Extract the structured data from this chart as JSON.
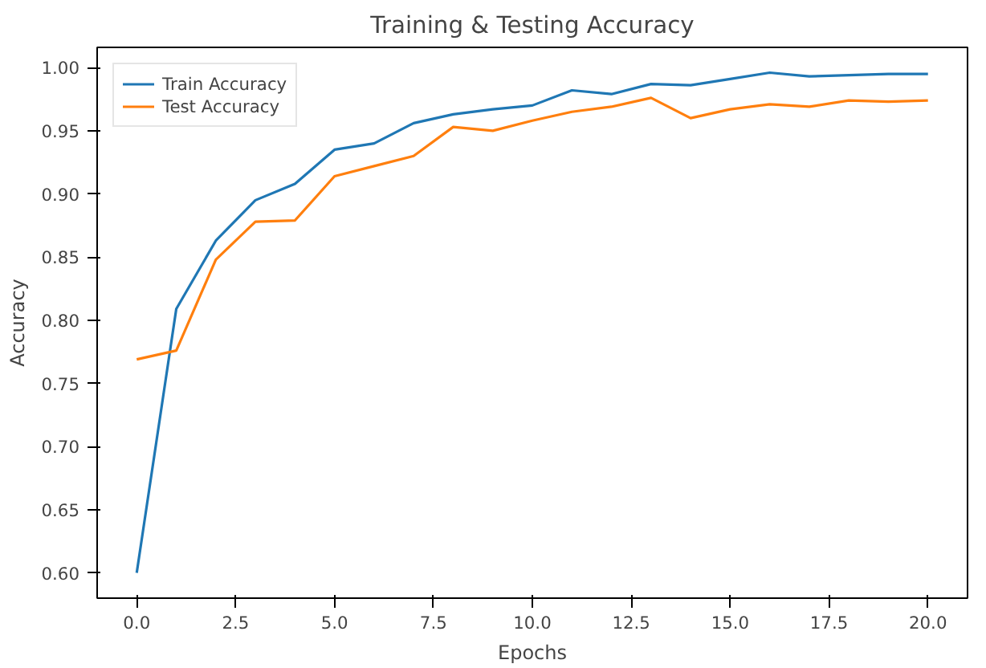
{
  "chart_data": {
    "type": "line",
    "title": "Training & Testing Accuracy",
    "xlabel": "Epochs",
    "ylabel": "Accuracy",
    "x": [
      0,
      1,
      2,
      3,
      4,
      5,
      6,
      7,
      8,
      9,
      10,
      11,
      12,
      13,
      14,
      15,
      16,
      17,
      18,
      19,
      20
    ],
    "series": [
      {
        "name": "Train Accuracy",
        "color": "#1f77b4",
        "values": [
          0.6,
          0.809,
          0.863,
          0.895,
          0.908,
          0.935,
          0.94,
          0.956,
          0.963,
          0.967,
          0.97,
          0.982,
          0.979,
          0.987,
          0.986,
          0.991,
          0.996,
          0.993,
          0.994,
          0.995,
          0.995
        ]
      },
      {
        "name": "Test Accuracy",
        "color": "#ff7f0e",
        "values": [
          0.769,
          0.776,
          0.848,
          0.878,
          0.879,
          0.914,
          0.922,
          0.93,
          0.953,
          0.95,
          0.958,
          0.965,
          0.969,
          0.976,
          0.96,
          0.967,
          0.971,
          0.969,
          0.974,
          0.973,
          0.974
        ]
      }
    ],
    "xlim": [
      -1.0,
      21.0
    ],
    "ylim": [
      0.58,
      1.016
    ],
    "xticks": [
      {
        "value": 0,
        "label": "0.0"
      },
      {
        "value": 2.5,
        "label": "2.5"
      },
      {
        "value": 5,
        "label": "5.0"
      },
      {
        "value": 7.5,
        "label": "7.5"
      },
      {
        "value": 10,
        "label": "10.0"
      },
      {
        "value": 12.5,
        "label": "12.5"
      },
      {
        "value": 15,
        "label": "15.0"
      },
      {
        "value": 17.5,
        "label": "17.5"
      },
      {
        "value": 20,
        "label": "20.0"
      }
    ],
    "yticks": [
      {
        "value": 0.6,
        "label": "0.60"
      },
      {
        "value": 0.65,
        "label": "0.65"
      },
      {
        "value": 0.7,
        "label": "0.70"
      },
      {
        "value": 0.75,
        "label": "0.75"
      },
      {
        "value": 0.8,
        "label": "0.80"
      },
      {
        "value": 0.85,
        "label": "0.85"
      },
      {
        "value": 0.9,
        "label": "0.90"
      },
      {
        "value": 0.95,
        "label": "0.95"
      },
      {
        "value": 1.0,
        "label": "1.00"
      }
    ],
    "legend": "top left",
    "grid": false,
    "marker": "none",
    "line_style": "solid"
  }
}
